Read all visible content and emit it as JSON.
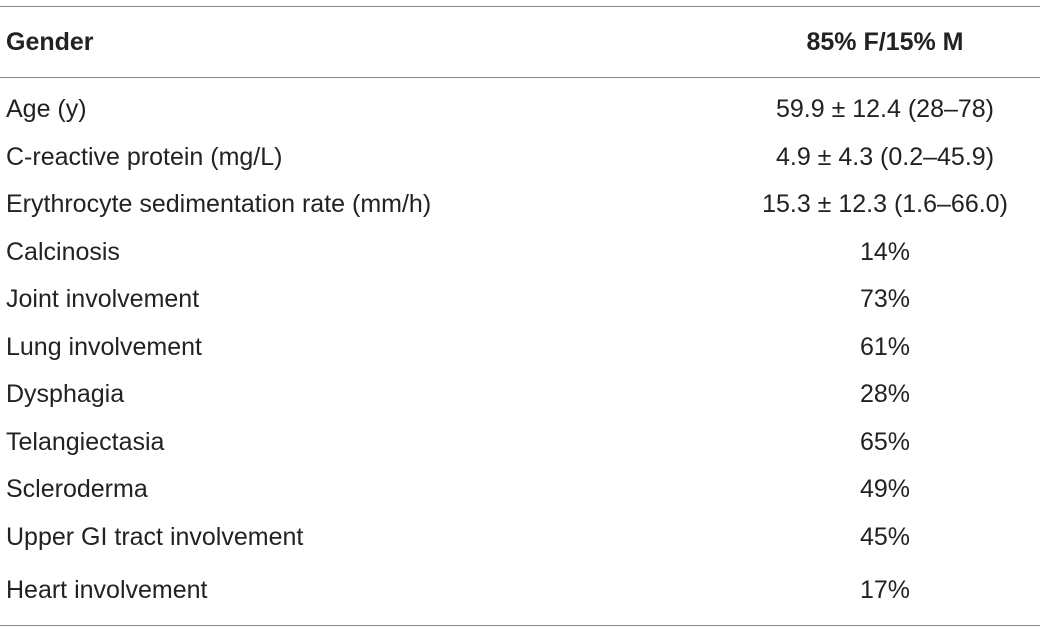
{
  "table": {
    "header": {
      "label": "Gender",
      "value": "85% F/15% M"
    },
    "rows": [
      {
        "label": "Age (y)",
        "value": "59.9 ± 12.4 (28–78)"
      },
      {
        "label": "C-reactive protein (mg/L)",
        "value": "4.9 ± 4.3 (0.2–45.9)"
      },
      {
        "label": "Erythrocyte sedimentation rate (mm/h)",
        "value": "15.3 ± 12.3 (1.6–66.0)"
      },
      {
        "label": "Calcinosis",
        "value": "14%"
      },
      {
        "label": "Joint involvement",
        "value": "73%"
      },
      {
        "label": "Lung involvement",
        "value": "61%"
      },
      {
        "label": "Dysphagia",
        "value": "28%"
      },
      {
        "label": "Telangiectasia",
        "value": "65%"
      },
      {
        "label": "Scleroderma",
        "value": "49%"
      },
      {
        "label": "Upper GI tract involvement",
        "value": "45%"
      },
      {
        "label": "Heart involvement",
        "value": "17%"
      }
    ]
  }
}
